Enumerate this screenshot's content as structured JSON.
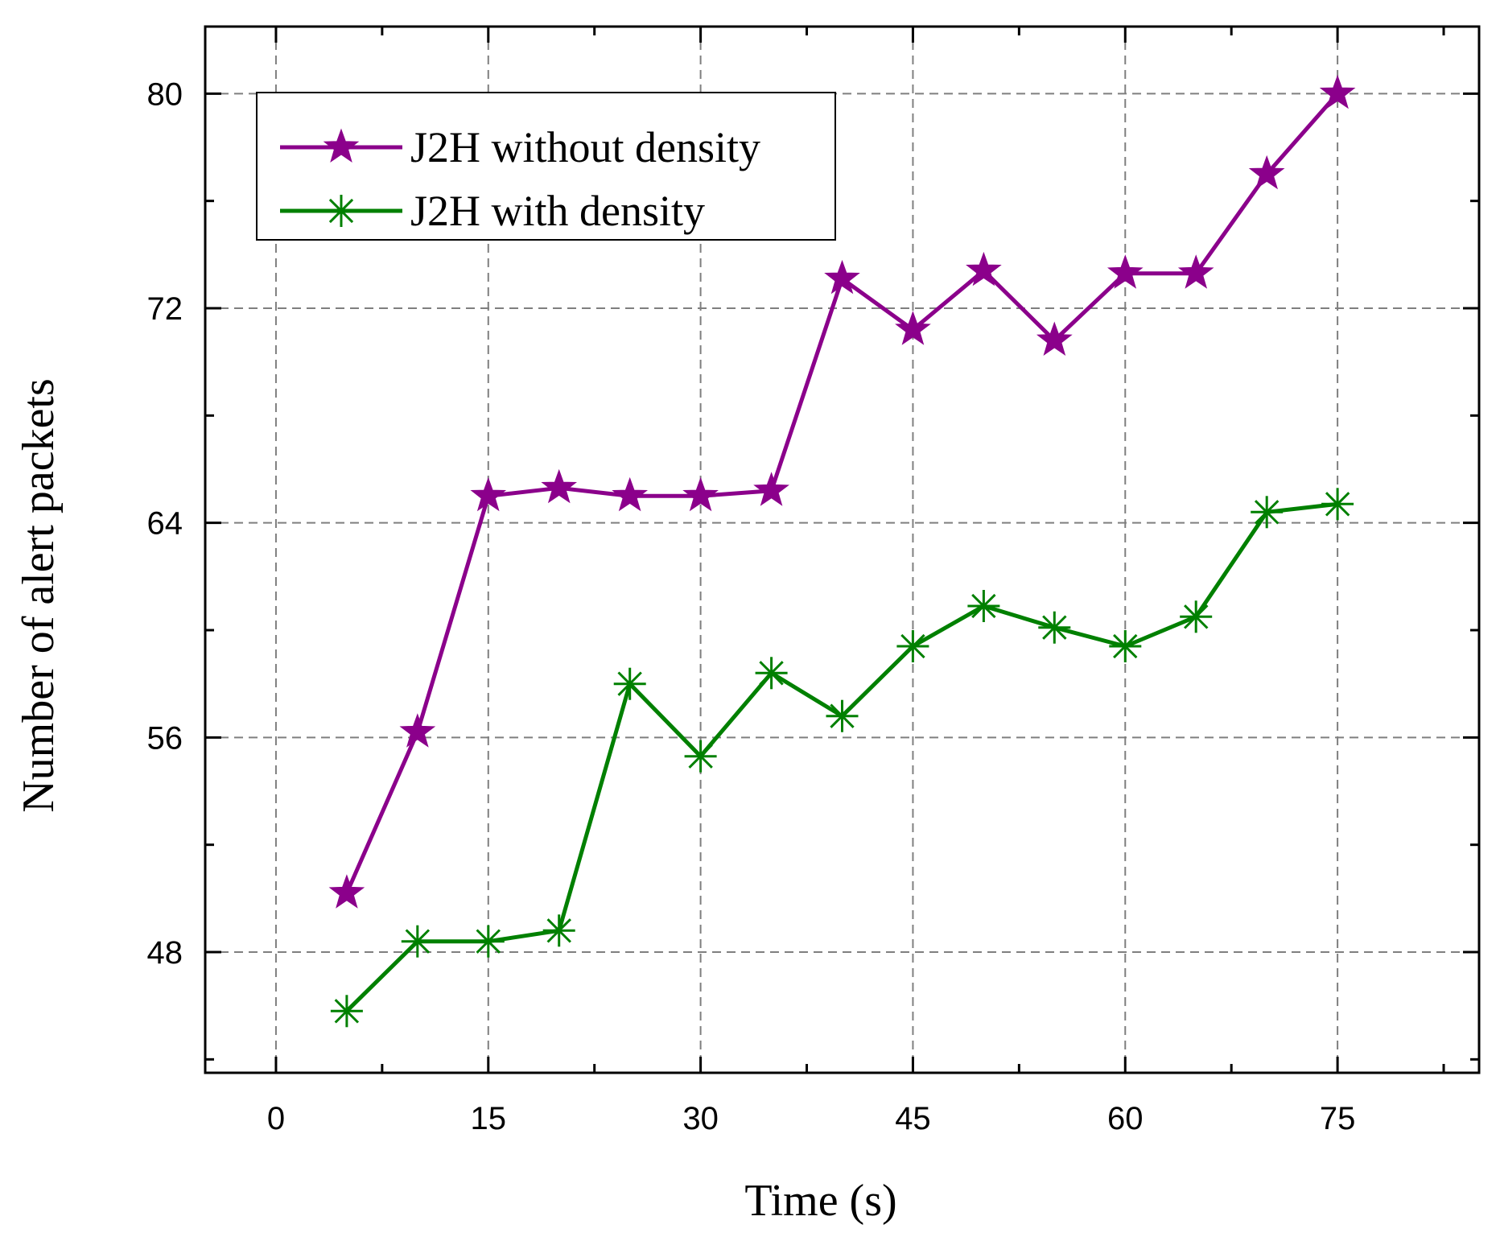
{
  "chart_data": {
    "type": "line",
    "title": "",
    "xlabel": "Time (s)",
    "ylabel": "Number of alert packets",
    "xlim": [
      -5,
      85
    ],
    "ylim": [
      43.5,
      82.5
    ],
    "xticks": [
      0,
      15,
      30,
      45,
      60,
      75
    ],
    "xtick_labels": [
      "0",
      "15",
      "30",
      "45",
      "60",
      "75"
    ],
    "yticks": [
      48,
      56,
      64,
      72,
      80
    ],
    "ytick_labels": [
      "48",
      "56",
      "64",
      "72",
      "80"
    ],
    "grid": true,
    "legend_position": "top-left",
    "x": [
      5,
      10,
      15,
      20,
      25,
      30,
      35,
      40,
      45,
      50,
      55,
      60,
      65,
      70,
      75
    ],
    "series": [
      {
        "name": "J2H without density",
        "color": "#8B008B",
        "marker": "star",
        "values": [
          50.2,
          56.2,
          65.0,
          65.3,
          65.0,
          65.0,
          65.2,
          73.1,
          71.2,
          73.4,
          70.8,
          73.3,
          73.3,
          77.0,
          80.0
        ]
      },
      {
        "name": "J2H with density",
        "color": "#008000",
        "marker": "asterisk",
        "values": [
          45.8,
          48.4,
          48.4,
          48.8,
          58.0,
          55.3,
          58.4,
          56.8,
          59.4,
          60.9,
          60.1,
          59.4,
          60.5,
          64.4,
          64.7
        ]
      }
    ]
  }
}
